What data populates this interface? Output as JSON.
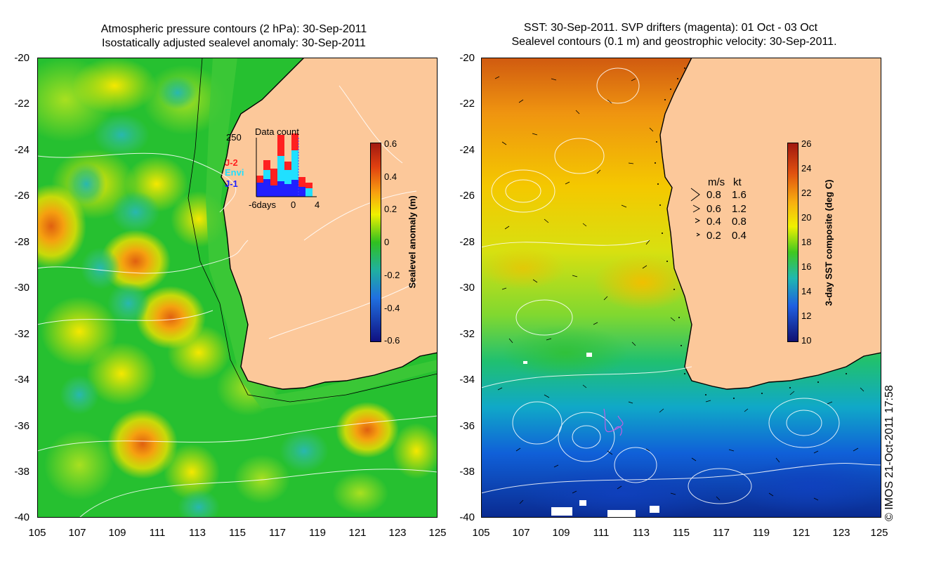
{
  "left_panel": {
    "title_line1": "Atmospheric pressure contours (2 hPa): 30-Sep-2011",
    "title_line2": "Isostatically adjusted sealevel anomaly: 30-Sep-2011",
    "colorbar_label": "Sealevel anomaly (m)",
    "colorbar_ticks": [
      "0.6",
      "0.4",
      "0.2",
      "0",
      "-0.2",
      "-0.4",
      "-0.6"
    ],
    "inset": {
      "title": "Data count",
      "ymax_label": "250",
      "legend": [
        {
          "label": "J-2",
          "color": "#ff2020"
        },
        {
          "label": "Envi",
          "color": "#20e0ff"
        },
        {
          "label": "J-1",
          "color": "#2020ff"
        }
      ],
      "xlabel_left": "-6days",
      "xtick_0": "0",
      "xtick_4": "4"
    }
  },
  "right_panel": {
    "title_line1": "SST: 30-Sep-2011. SVP drifters (magenta): 01 Oct - 03 Oct",
    "title_line2": "Sealevel contours (0.1 m) and geostrophic velocity: 30-Sep-2011.",
    "colorbar_label": "3-day SST composite (deg C)",
    "colorbar_ticks": [
      "26",
      "24",
      "22",
      "20",
      "18",
      "16",
      "14",
      "12",
      "10"
    ],
    "velocity_legend": {
      "header_ms": "m/s",
      "header_kt": "kt",
      "rows": [
        {
          "ms": "0.8",
          "kt": "1.6"
        },
        {
          "ms": "0.6",
          "kt": "1.2"
        },
        {
          "ms": "0.4",
          "kt": "0.8"
        },
        {
          "ms": "0.2",
          "kt": "0.4"
        }
      ]
    }
  },
  "y_ticks": [
    "-20",
    "-22",
    "-24",
    "-26",
    "-28",
    "-30",
    "-32",
    "-34",
    "-36",
    "-38",
    "-40"
  ],
  "x_ticks": [
    "105",
    "107",
    "109",
    "111",
    "113",
    "115",
    "117",
    "119",
    "121",
    "123",
    "125"
  ],
  "copyright": "© IMOS 21-Oct-2011 17:58",
  "colors": {
    "land": "#fcc89a",
    "ocean_base": "#22c03a",
    "coast": "#000000"
  }
}
